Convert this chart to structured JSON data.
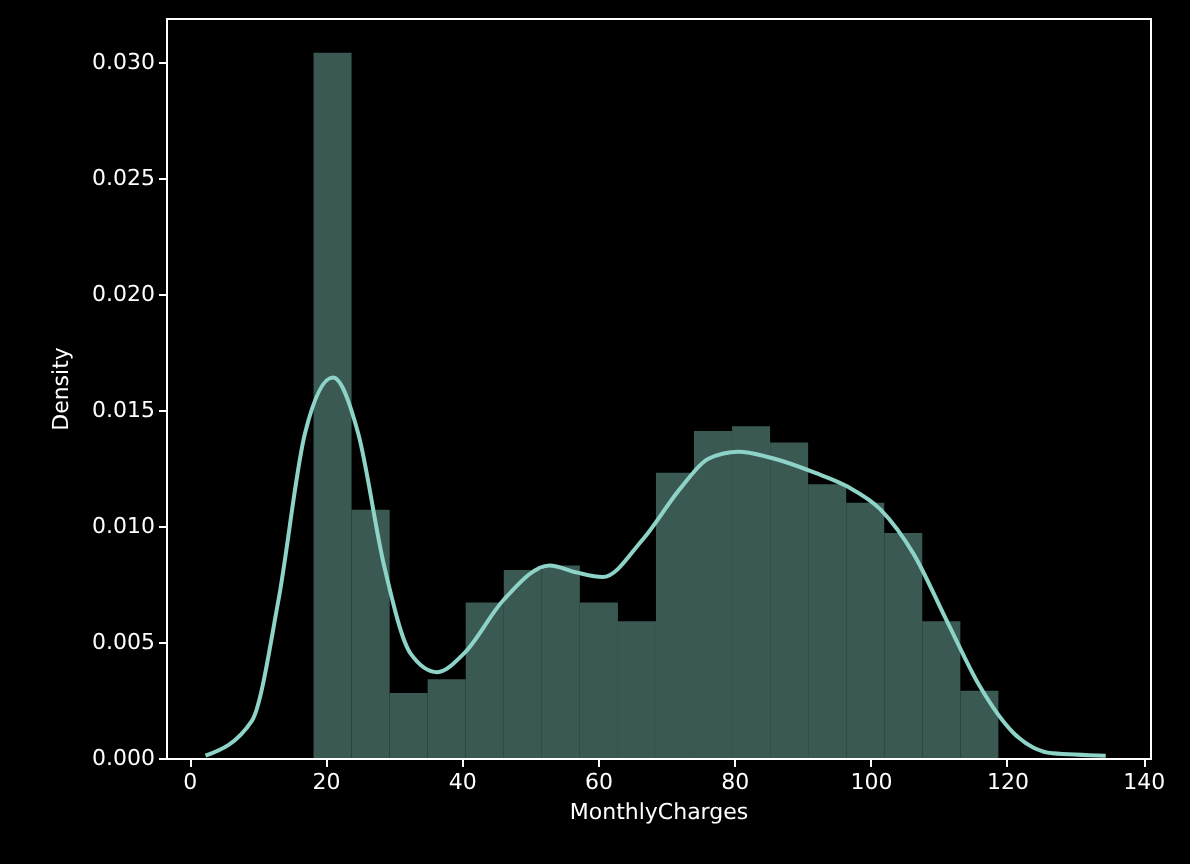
{
  "chart_data": {
    "type": "histogram",
    "xlabel": "MonthlyCharges",
    "ylabel": "Density",
    "xlim": [
      -3.4,
      141
    ],
    "ylim": [
      0,
      0.0319
    ],
    "xticks": [
      0,
      20,
      40,
      60,
      80,
      100,
      120,
      140
    ],
    "yticks": [
      {
        "value": 0,
        "label": "0.000"
      },
      {
        "value": 0.005,
        "label": "0.005"
      },
      {
        "value": 0.01,
        "label": "0.010"
      },
      {
        "value": 0.015,
        "label": "0.015"
      },
      {
        "value": 0.02,
        "label": "0.020"
      },
      {
        "value": 0.025,
        "label": "0.025"
      },
      {
        "value": 0.03,
        "label": "0.030"
      }
    ],
    "grid": false,
    "color": "#3b5953",
    "bins": [
      18.25,
      23.83,
      29.42,
      35.0,
      40.58,
      46.17,
      51.75,
      57.33,
      62.92,
      68.5,
      74.08,
      79.67,
      85.25,
      90.83,
      96.42,
      102.0,
      107.58,
      113.17,
      118.75
    ],
    "values": [
      0.0304,
      0.0107,
      0.0028,
      0.0034,
      0.0067,
      0.0081,
      0.0083,
      0.0067,
      0.0059,
      0.0123,
      0.0141,
      0.0143,
      0.0136,
      0.0118,
      0.011,
      0.0097,
      0.0059,
      0.0029
    ],
    "series": [
      {
        "type": "line",
        "color": "#8dd3c7",
        "x": [
          2.4,
          9.2,
          13.1,
          17,
          21.1,
          24.8,
          28.6,
          32.5,
          36.4,
          40.3,
          46.1,
          52.9,
          56.8,
          60.7,
          66.5,
          72.3,
          76.2,
          80.6,
          85.9,
          91.8,
          96.6,
          101.5,
          106.3,
          111.2,
          116,
          120.9,
          126.7,
          134.5
        ],
        "values": [
          0.0001,
          0.0016,
          0.0068,
          0.014,
          0.0164,
          0.014,
          0.0083,
          0.0045,
          0.0037,
          0.0045,
          0.0068,
          0.0083,
          0.008,
          0.0078,
          0.0094,
          0.0117,
          0.0129,
          0.0132,
          0.0129,
          0.0123,
          0.0117,
          0.0107,
          0.0088,
          0.0059,
          0.0031,
          0.0011,
          0.0002,
          0.0001
        ]
      }
    ]
  }
}
